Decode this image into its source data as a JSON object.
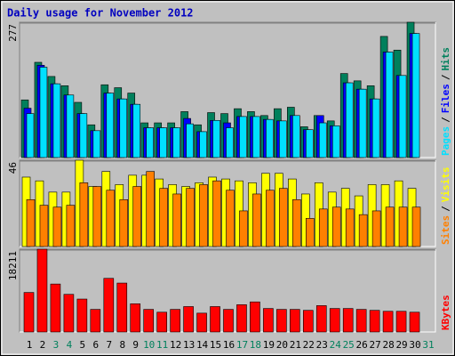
{
  "legend_separator": "/",
  "chart_data": [
    {
      "type": "bar",
      "title": "Daily usage for November 2012",
      "ylim": [
        0,
        277
      ],
      "yticks": [
        277
      ],
      "series": [
        {
          "name": "Hits",
          "color": "#00805c",
          "values": [
            118,
            195,
            166,
            147,
            113,
            67,
            149,
            143,
            132,
            71,
            71,
            71,
            94,
            67,
            92,
            90,
            100,
            94,
            86,
            100,
            103,
            63,
            86,
            75,
            172,
            157,
            147,
            248,
            220,
            277,
            null
          ]
        },
        {
          "name": "Files",
          "color": "#0000ff",
          "values": [
            101,
            189,
            151,
            128,
            90,
            55,
            132,
            120,
            109,
            61,
            61,
            61,
            80,
            53,
            76,
            71,
            84,
            84,
            78,
            75,
            86,
            57,
            86,
            65,
            153,
            140,
            120,
            216,
            168,
            254,
            null
          ]
        },
        {
          "name": "Pages",
          "color": "#00e0ff",
          "values": [
            90,
            185,
            151,
            128,
            90,
            55,
            132,
            120,
            109,
            61,
            61,
            61,
            69,
            53,
            76,
            61,
            84,
            84,
            78,
            75,
            86,
            57,
            71,
            65,
            153,
            140,
            120,
            216,
            168,
            254,
            null
          ]
        }
      ]
    },
    {
      "type": "bar",
      "ylim": [
        0,
        46
      ],
      "yticks": [
        46
      ],
      "series": [
        {
          "name": "Visits",
          "color": "#ffff00",
          "values": [
            37,
            35,
            29,
            29,
            46,
            32,
            40,
            33,
            38,
            38,
            36,
            33,
            32,
            34,
            37,
            36,
            35,
            34,
            39,
            39,
            36,
            28,
            34,
            29,
            31,
            27,
            33,
            33,
            35,
            31,
            null
          ]
        },
        {
          "name": "Sites",
          "color": "#ff8000",
          "values": [
            25,
            22,
            21,
            22,
            34,
            32,
            30,
            25,
            32,
            40,
            31,
            28,
            31,
            33,
            35,
            30,
            19,
            28,
            30,
            31,
            25,
            15,
            20,
            21,
            20,
            17,
            19,
            21,
            21,
            21,
            null
          ]
        }
      ]
    },
    {
      "type": "bar",
      "ylim": [
        0,
        18211
      ],
      "yticks": [
        18211
      ],
      "categories": [
        "1",
        "2",
        "3",
        "4",
        "5",
        "6",
        "7",
        "8",
        "9",
        "10",
        "11",
        "12",
        "13",
        "14",
        "15",
        "16",
        "17",
        "18",
        "19",
        "20",
        "21",
        "22",
        "23",
        "24",
        "25",
        "26",
        "27",
        "28",
        "29",
        "30",
        "31"
      ],
      "category_colors": [
        "#000000",
        "#000000",
        "#00805c",
        "#00805c",
        "#000000",
        "#000000",
        "#000000",
        "#000000",
        "#000000",
        "#00805c",
        "#00805c",
        "#000000",
        "#000000",
        "#000000",
        "#000000",
        "#000000",
        "#00805c",
        "#00805c",
        "#000000",
        "#000000",
        "#000000",
        "#000000",
        "#000000",
        "#00805c",
        "#00805c",
        "#000000",
        "#000000",
        "#000000",
        "#000000",
        "#000000",
        "#00805c"
      ],
      "series": [
        {
          "name": "KBytes",
          "color": "#ff0000",
          "values": [
            8690,
            18211,
            10550,
            8280,
            7240,
            4970,
            11800,
            10760,
            6210,
            4970,
            4350,
            4970,
            5590,
            4140,
            5590,
            4970,
            6000,
            6620,
            5170,
            4970,
            4970,
            4760,
            5800,
            5170,
            5170,
            4970,
            4760,
            4550,
            4550,
            4350,
            null
          ]
        }
      ]
    }
  ]
}
